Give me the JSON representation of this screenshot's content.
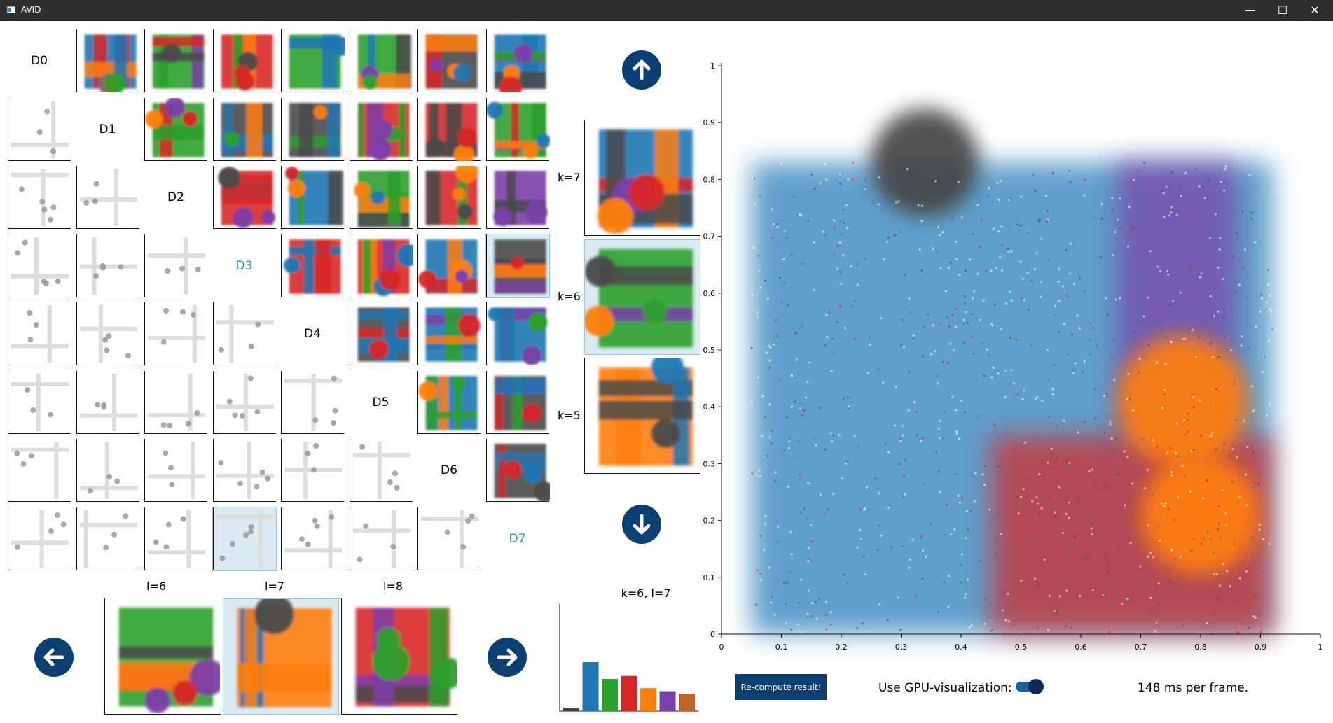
{
  "window": {
    "title": "AVID",
    "minimize": "—",
    "maximize": "☐",
    "close": "✕"
  },
  "colors": {
    "blue": "#1f77b4",
    "orange": "#ff7f0e",
    "green": "#2ca02c",
    "red": "#d62728",
    "purple": "#7b3fa8",
    "brown": "#8c564b",
    "dark": "#4a4a4a",
    "accent": "#0b3f72",
    "highlight": "#dbeaf3"
  },
  "matrix": {
    "dims": [
      "D0",
      "D1",
      "D2",
      "D3",
      "D4",
      "D5",
      "D6",
      "D7"
    ],
    "active_dims": [
      "D3",
      "D7"
    ]
  },
  "k_panel": {
    "up_icon": "arrow-up-icon",
    "down_icon": "arrow-down-icon",
    "items": [
      {
        "label": "k=7"
      },
      {
        "label": "k=6"
      },
      {
        "label": "k=5"
      }
    ],
    "selected": "k=6"
  },
  "l_panel": {
    "left_icon": "arrow-left-icon",
    "right_icon": "arrow-right-icon",
    "items": [
      {
        "label": "l=6"
      },
      {
        "label": "l=7"
      },
      {
        "label": "l=8"
      }
    ],
    "selected": "l=7"
  },
  "bar_chart": {
    "title": "k=6, l=7",
    "values": [
      2,
      32,
      21,
      23,
      15,
      13,
      11
    ],
    "colors": [
      "#444444",
      "#1f77b4",
      "#2ca02c",
      "#d62728",
      "#ff7f0e",
      "#7b3fa8",
      "#c0622a"
    ]
  },
  "chart_data": {
    "type": "scatter",
    "title": "",
    "xlabel": "",
    "ylabel": "",
    "xlim": [
      0,
      1
    ],
    "ylim": [
      0,
      1
    ],
    "x_ticks": [
      "0",
      "0.1",
      "0.2",
      "0.3",
      "0.4",
      "0.5",
      "0.6",
      "0.7",
      "0.8",
      "0.9",
      "1"
    ],
    "y_ticks": [
      "0",
      "0.1",
      "0.2",
      "0.3",
      "0.4",
      "0.5",
      "0.6",
      "0.7",
      "0.8",
      "0.9",
      "1"
    ],
    "regions": [
      {
        "color": "#1f77b4",
        "shape": "rect",
        "x": [
          0.05,
          0.92
        ],
        "y": [
          0,
          0.83
        ]
      },
      {
        "color": "#7b3fa8",
        "shape": "rect",
        "x": [
          0.66,
          0.86
        ],
        "y": [
          0.35,
          0.83
        ]
      },
      {
        "color": "#d62728",
        "shape": "rect",
        "x": [
          0.45,
          0.92
        ],
        "y": [
          0,
          0.35
        ]
      },
      {
        "color": "#444444",
        "shape": "blob",
        "cx": 0.34,
        "cy": 0.83,
        "r": 0.09
      },
      {
        "color": "#ff7f0e",
        "shape": "blob",
        "cx": 0.77,
        "cy": 0.41,
        "r": 0.11
      },
      {
        "color": "#ff7f0e",
        "shape": "blob",
        "cx": 0.8,
        "cy": 0.21,
        "r": 0.1
      }
    ],
    "grid": false,
    "legend": "none"
  },
  "controls": {
    "recompute_label": "Re-compute result!",
    "gpu_label": "Use GPU-visualization:",
    "gpu_enabled": true,
    "frame_time": "148 ms per frame."
  }
}
